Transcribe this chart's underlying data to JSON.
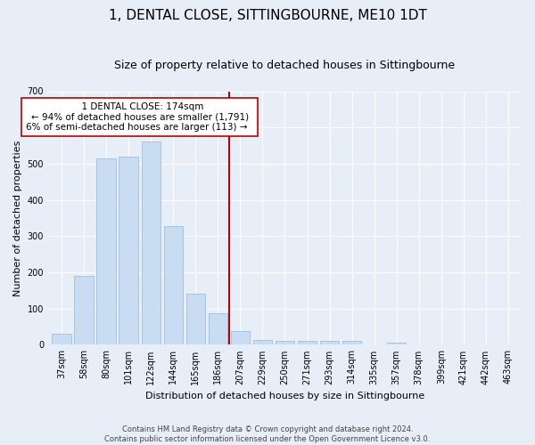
{
  "title": "1, DENTAL CLOSE, SITTINGBOURNE, ME10 1DT",
  "subtitle": "Size of property relative to detached houses in Sittingbourne",
  "xlabel": "Distribution of detached houses by size in Sittingbourne",
  "ylabel": "Number of detached properties",
  "footer_line1": "Contains HM Land Registry data © Crown copyright and database right 2024.",
  "footer_line2": "Contains public sector information licensed under the Open Government Licence v3.0.",
  "annotation_title": "1 DENTAL CLOSE: 174sqm",
  "annotation_line2": "← 94% of detached houses are smaller (1,791)",
  "annotation_line3": "6% of semi-detached houses are larger (113) →",
  "bar_color": "#c9ddf2",
  "bar_edge_color": "#a0bedd",
  "vline_color": "#bb0000",
  "vline_index": 7.5,
  "categories": [
    "37sqm",
    "58sqm",
    "80sqm",
    "101sqm",
    "122sqm",
    "144sqm",
    "165sqm",
    "186sqm",
    "207sqm",
    "229sqm",
    "250sqm",
    "271sqm",
    "293sqm",
    "314sqm",
    "335sqm",
    "357sqm",
    "378sqm",
    "399sqm",
    "421sqm",
    "442sqm",
    "463sqm"
  ],
  "values": [
    30,
    190,
    515,
    520,
    560,
    328,
    140,
    88,
    38,
    13,
    11,
    10,
    10,
    11,
    0,
    7,
    0,
    0,
    0,
    0,
    0
  ],
  "ylim": [
    0,
    700
  ],
  "yticks": [
    0,
    100,
    200,
    300,
    400,
    500,
    600,
    700
  ],
  "bg_color": "#e8eef8",
  "fig_bg_color": "#e8eef8",
  "grid_color": "#ffffff",
  "title_fontsize": 11,
  "subtitle_fontsize": 9,
  "xlabel_fontsize": 8,
  "ylabel_fontsize": 8,
  "tick_fontsize": 7,
  "annot_fontsize": 7.5,
  "footer_fontsize": 6
}
